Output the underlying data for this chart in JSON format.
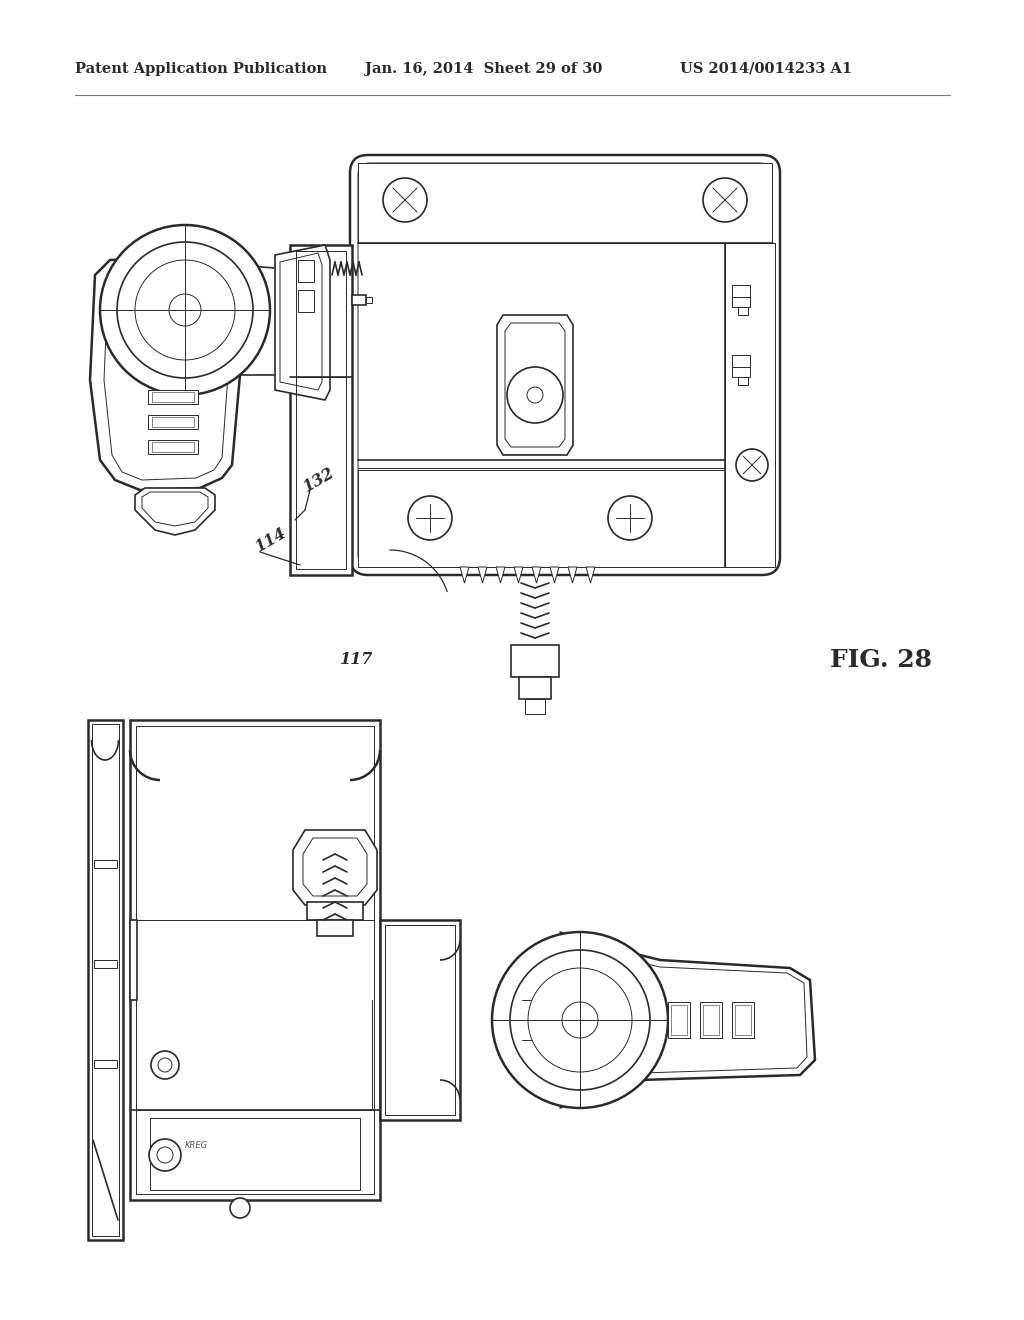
{
  "bg_color": "#ffffff",
  "line_color": "#2a2a2a",
  "header_left": "Patent Application Publication",
  "header_mid": "Jan. 16, 2014  Sheet 29 of 30",
  "header_right": "US 2014/0014233 A1",
  "fig_label": "FIG. 28",
  "lw_outer": 1.8,
  "lw_main": 1.2,
  "lw_thin": 0.7,
  "lw_xtra": 0.4
}
